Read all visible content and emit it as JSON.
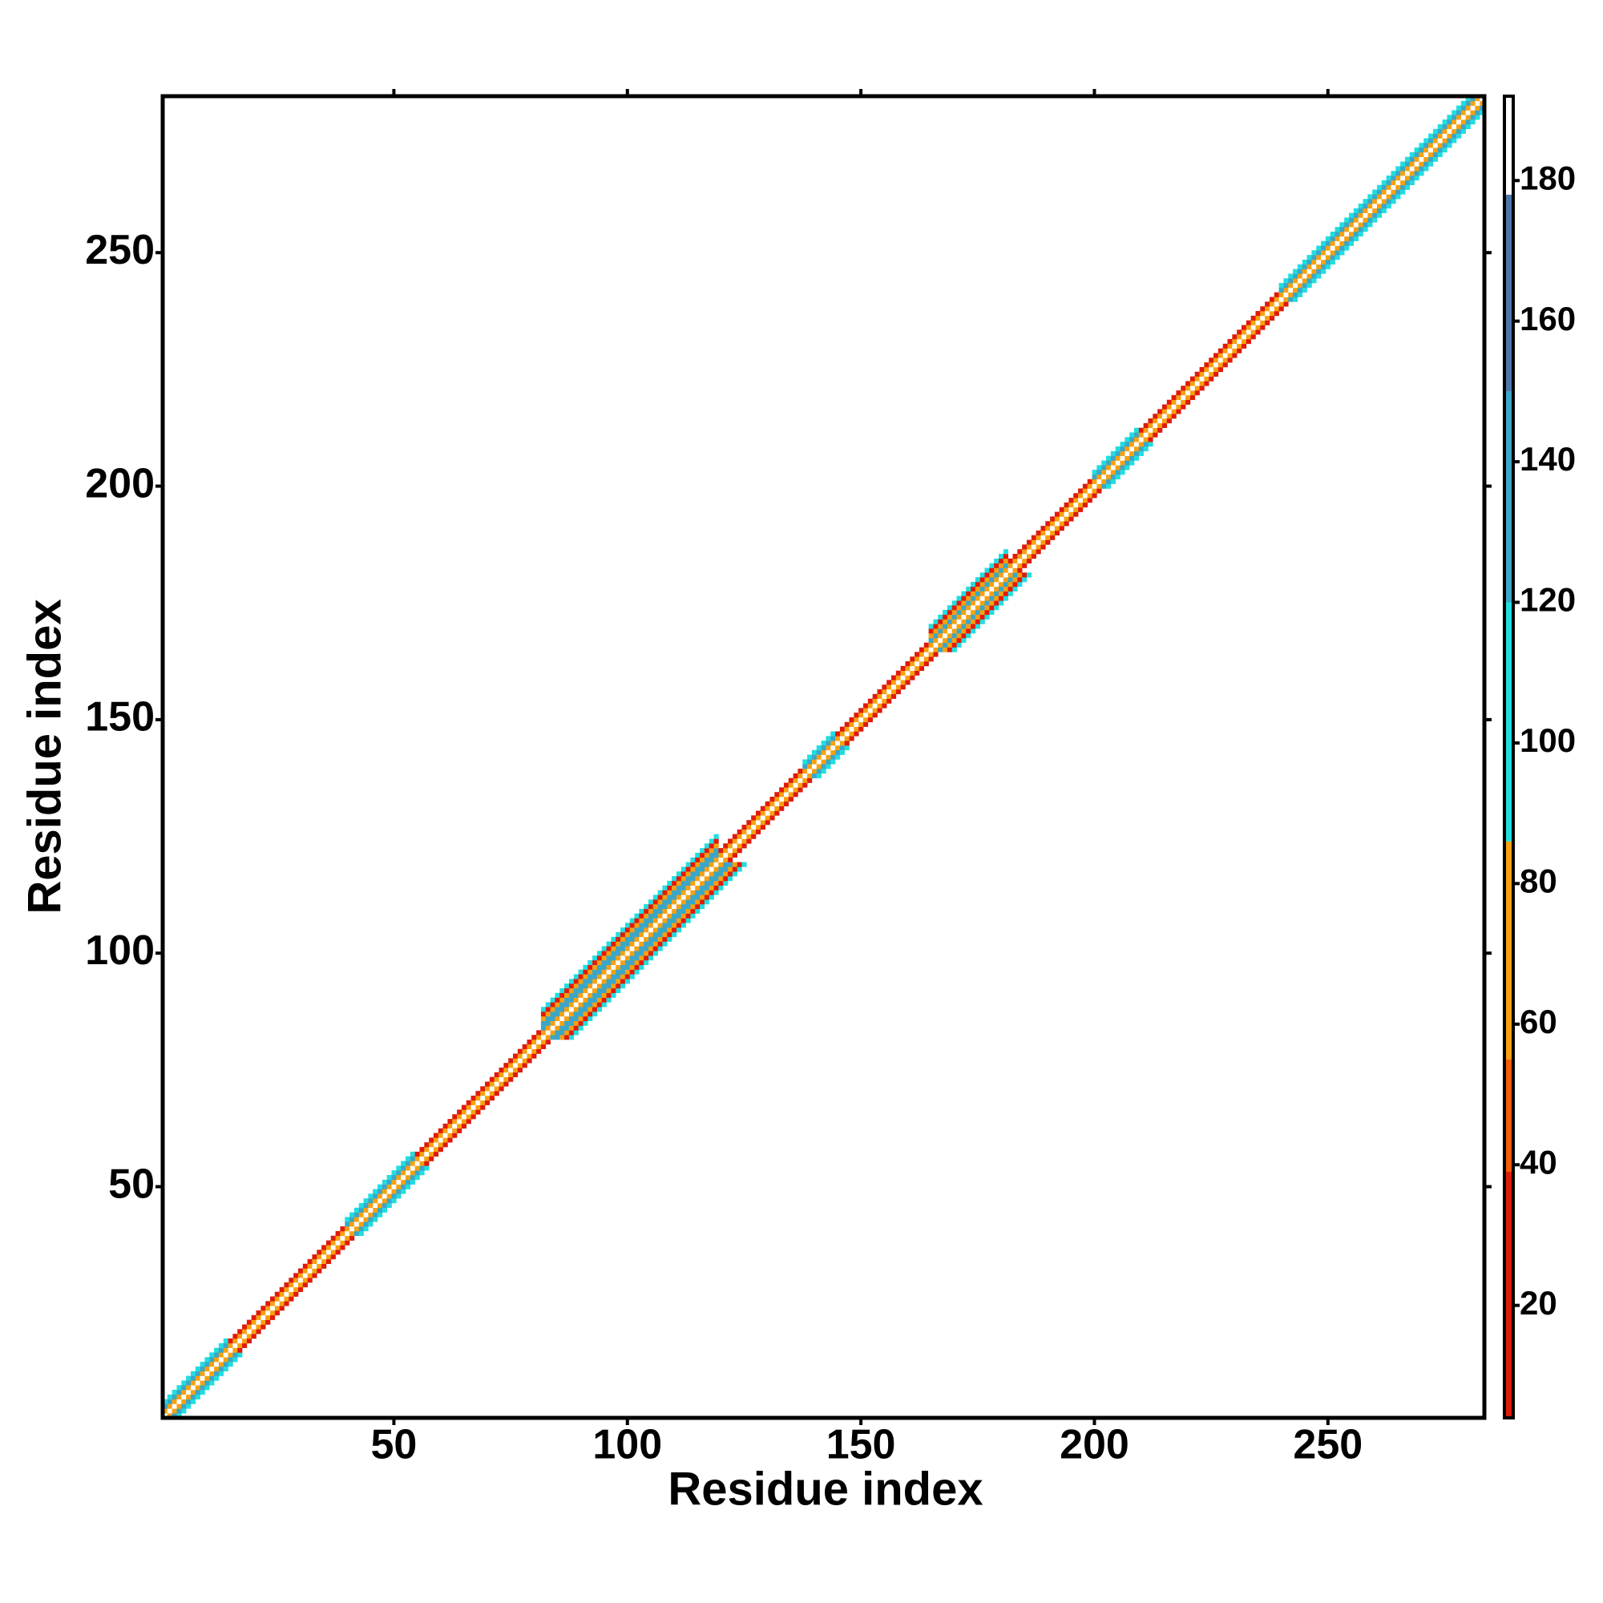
{
  "chart_data": {
    "type": "heatmap",
    "xlabel": "Residue index",
    "ylabel": "Residue index",
    "xlim": [
      0.5,
      283.5
    ],
    "ylim": [
      0.5,
      283.5
    ],
    "xticks": [
      50,
      100,
      150,
      200,
      250
    ],
    "yticks": [
      50,
      100,
      150,
      200,
      250
    ],
    "segments": [
      {
        "residues": [
          1,
          14
        ],
        "values": [
          180,
          70,
          140,
          100
        ]
      },
      {
        "residues": [
          15,
          39
        ],
        "values": [
          180,
          70,
          25
        ]
      },
      {
        "residues": [
          40,
          54
        ],
        "values": [
          180,
          70,
          140,
          100
        ]
      },
      {
        "residues": [
          55,
          81
        ],
        "values": [
          180,
          60,
          30
        ]
      },
      {
        "residues": [
          82,
          119
        ],
        "values": [
          180,
          70,
          150,
          140,
          60,
          30,
          100
        ]
      },
      {
        "residues": [
          120,
          137
        ],
        "values": [
          180,
          70,
          30
        ]
      },
      {
        "residues": [
          138,
          144
        ],
        "values": [
          180,
          70,
          140,
          100
        ]
      },
      {
        "residues": [
          145,
          164
        ],
        "values": [
          180,
          60,
          25
        ]
      },
      {
        "residues": [
          165,
          181
        ],
        "values": [
          180,
          70,
          150,
          60,
          30,
          100
        ]
      },
      {
        "residues": [
          182,
          199
        ],
        "values": [
          180,
          60,
          30
        ]
      },
      {
        "residues": [
          200,
          209
        ],
        "values": [
          180,
          70,
          140,
          100
        ]
      },
      {
        "residues": [
          210,
          239
        ],
        "values": [
          180,
          60,
          30
        ]
      },
      {
        "residues": [
          240,
          283
        ],
        "values": [
          180,
          70,
          140,
          100
        ]
      }
    ],
    "colorbar": {
      "lim": [
        4,
        192
      ],
      "ticks": [
        20,
        40,
        60,
        80,
        100,
        120,
        140,
        160,
        180
      ],
      "levels": [
        {
          "from": 4,
          "to": 39,
          "color": "#e01a0a"
        },
        {
          "from": 39,
          "to": 55,
          "color": "#f25c08"
        },
        {
          "from": 55,
          "to": 86,
          "color": "#f7a010"
        },
        {
          "from": 86,
          "to": 120,
          "color": "#22dde0"
        },
        {
          "from": 120,
          "to": 150,
          "color": "#3aa6c8"
        },
        {
          "from": 150,
          "to": 178,
          "color": "#4c78a8"
        },
        {
          "from": 178,
          "to": 192,
          "color": "#ffffff"
        }
      ]
    }
  }
}
